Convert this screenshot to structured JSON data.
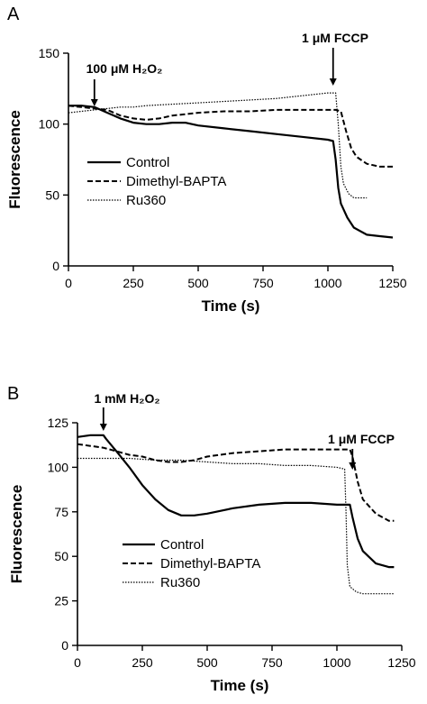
{
  "chart_data": [
    {
      "panel": "A",
      "type": "line",
      "xlabel": "Time (s)",
      "ylabel": "Fluorescence",
      "xlim": [
        0,
        1250
      ],
      "ylim": [
        0,
        150
      ],
      "xticks": [
        0,
        250,
        500,
        750,
        1000,
        1250
      ],
      "yticks": [
        0,
        50,
        100,
        150
      ],
      "grid": false,
      "legend_position": "center-left",
      "annotations": [
        {
          "text": "100 μM H₂O₂",
          "x": 100
        },
        {
          "text": "1 μM FCCP",
          "x": 1020
        }
      ],
      "series": [
        {
          "name": "Control",
          "style": "solid",
          "x": [
            0,
            50,
            100,
            150,
            200,
            250,
            300,
            350,
            400,
            450,
            500,
            600,
            700,
            800,
            900,
            1000,
            1020,
            1030,
            1040,
            1050,
            1075,
            1100,
            1150,
            1200,
            1250
          ],
          "y": [
            113,
            113,
            112,
            108,
            104,
            101,
            100,
            100,
            101,
            101,
            99,
            97,
            95,
            93,
            91,
            89,
            88,
            75,
            55,
            44,
            34,
            27,
            22,
            21,
            20
          ]
        },
        {
          "name": "Dimethyl-BAPTA",
          "style": "dashed",
          "x": [
            0,
            50,
            100,
            150,
            200,
            250,
            300,
            350,
            400,
            450,
            500,
            600,
            700,
            800,
            900,
            1000,
            1030,
            1050,
            1070,
            1090,
            1110,
            1150,
            1200,
            1250
          ],
          "y": [
            113,
            112,
            111,
            110,
            106,
            104,
            103,
            104,
            106,
            107,
            108,
            109,
            109,
            110,
            110,
            110,
            110,
            109,
            95,
            83,
            77,
            72,
            70,
            70
          ]
        },
        {
          "name": "Ru360",
          "style": "dotted",
          "x": [
            0,
            50,
            100,
            150,
            200,
            250,
            300,
            400,
            500,
            600,
            700,
            800,
            900,
            1000,
            1030,
            1040,
            1050,
            1060,
            1080,
            1100,
            1150
          ],
          "y": [
            108,
            109,
            110,
            111,
            112,
            112,
            113,
            114,
            115,
            116,
            117,
            118,
            120,
            122,
            122,
            100,
            70,
            58,
            51,
            48,
            48
          ]
        }
      ]
    },
    {
      "panel": "B",
      "type": "line",
      "xlabel": "Time (s)",
      "ylabel": "Fluorescence",
      "xlim": [
        0,
        1250
      ],
      "ylim": [
        0,
        125
      ],
      "xticks": [
        0,
        250,
        500,
        750,
        1000,
        1250
      ],
      "yticks": [
        0,
        25,
        50,
        75,
        100,
        125
      ],
      "grid": false,
      "legend_position": "bottom-left",
      "annotations": [
        {
          "text": "1 mM H₂O₂",
          "x": 100
        },
        {
          "text": "1 μM FCCP",
          "x": 1060
        }
      ],
      "series": [
        {
          "name": "Control",
          "style": "solid",
          "x": [
            0,
            50,
            100,
            110,
            150,
            200,
            250,
            300,
            350,
            400,
            450,
            500,
            600,
            700,
            800,
            900,
            1000,
            1050,
            1060,
            1080,
            1100,
            1150,
            1200,
            1220
          ],
          "y": [
            117,
            118,
            118,
            116,
            109,
            100,
            90,
            82,
            76,
            73,
            73,
            74,
            77,
            79,
            80,
            80,
            79,
            79,
            72,
            60,
            53,
            46,
            44,
            44
          ]
        },
        {
          "name": "Dimethyl-BAPTA",
          "style": "dashed",
          "x": [
            0,
            50,
            100,
            150,
            200,
            250,
            300,
            350,
            400,
            450,
            500,
            600,
            700,
            800,
            900,
            1000,
            1050,
            1060,
            1080,
            1100,
            1150,
            1200,
            1220
          ],
          "y": [
            113,
            112,
            111,
            109,
            107,
            106,
            104,
            103,
            103,
            104,
            106,
            108,
            109,
            110,
            110,
            110,
            110,
            106,
            92,
            82,
            74,
            70,
            70
          ]
        },
        {
          "name": "Ru360",
          "style": "dotted",
          "x": [
            0,
            100,
            200,
            300,
            400,
            500,
            600,
            700,
            800,
            900,
            1000,
            1030,
            1035,
            1040,
            1050,
            1075,
            1100,
            1150,
            1200,
            1220
          ],
          "y": [
            105,
            105,
            105,
            104,
            104,
            103,
            102,
            102,
            101,
            101,
            100,
            99,
            75,
            45,
            33,
            30,
            29,
            29,
            29,
            29
          ]
        }
      ]
    }
  ]
}
